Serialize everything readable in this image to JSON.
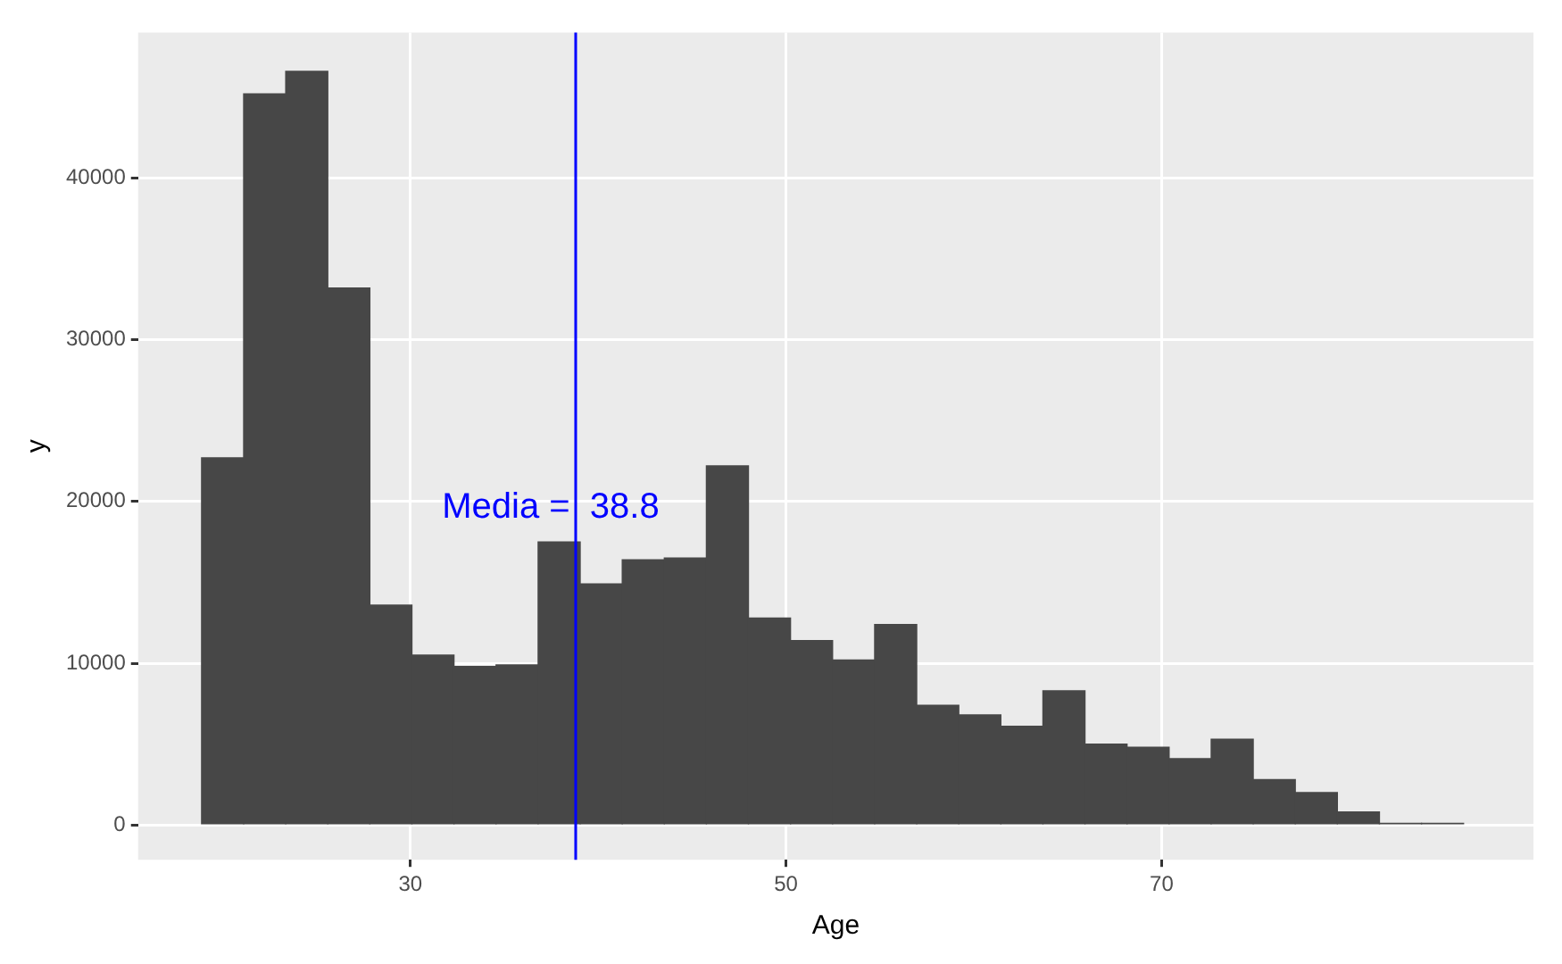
{
  "chart_data": {
    "type": "histogram",
    "xlabel": "Age",
    "ylabel": "y",
    "bins": [
      18.88,
      21.12,
      23.36,
      25.6,
      27.84,
      30.08,
      32.32,
      34.56,
      36.8,
      39.04,
      41.28,
      43.52,
      45.76,
      48.0,
      50.24,
      52.48,
      54.72,
      56.96,
      59.2,
      61.44,
      63.68,
      65.92,
      68.16,
      70.4,
      72.64,
      74.88,
      77.12,
      79.36,
      81.6,
      83.84,
      86.08
    ],
    "values": [
      22700,
      45200,
      46600,
      33200,
      13600,
      10500,
      9800,
      9900,
      17500,
      14900,
      16400,
      16500,
      22200,
      12800,
      11400,
      10200,
      12400,
      7400,
      6800,
      6100,
      8300,
      5000,
      4800,
      4100,
      5300,
      2800,
      2000,
      800,
      100,
      100
    ],
    "color": "#474747",
    "xlim": [
      15.5,
      89.8
    ],
    "xticks": [
      30,
      50,
      70
    ],
    "ylim": [
      -2150,
      49000
    ],
    "yticks": [
      0,
      10000,
      20000,
      30000,
      40000
    ],
    "grid": true,
    "ref_lines": [
      {
        "axis": "x",
        "value": 38.8,
        "color": "#0000ff",
        "label": "Media =  38.8"
      }
    ]
  }
}
